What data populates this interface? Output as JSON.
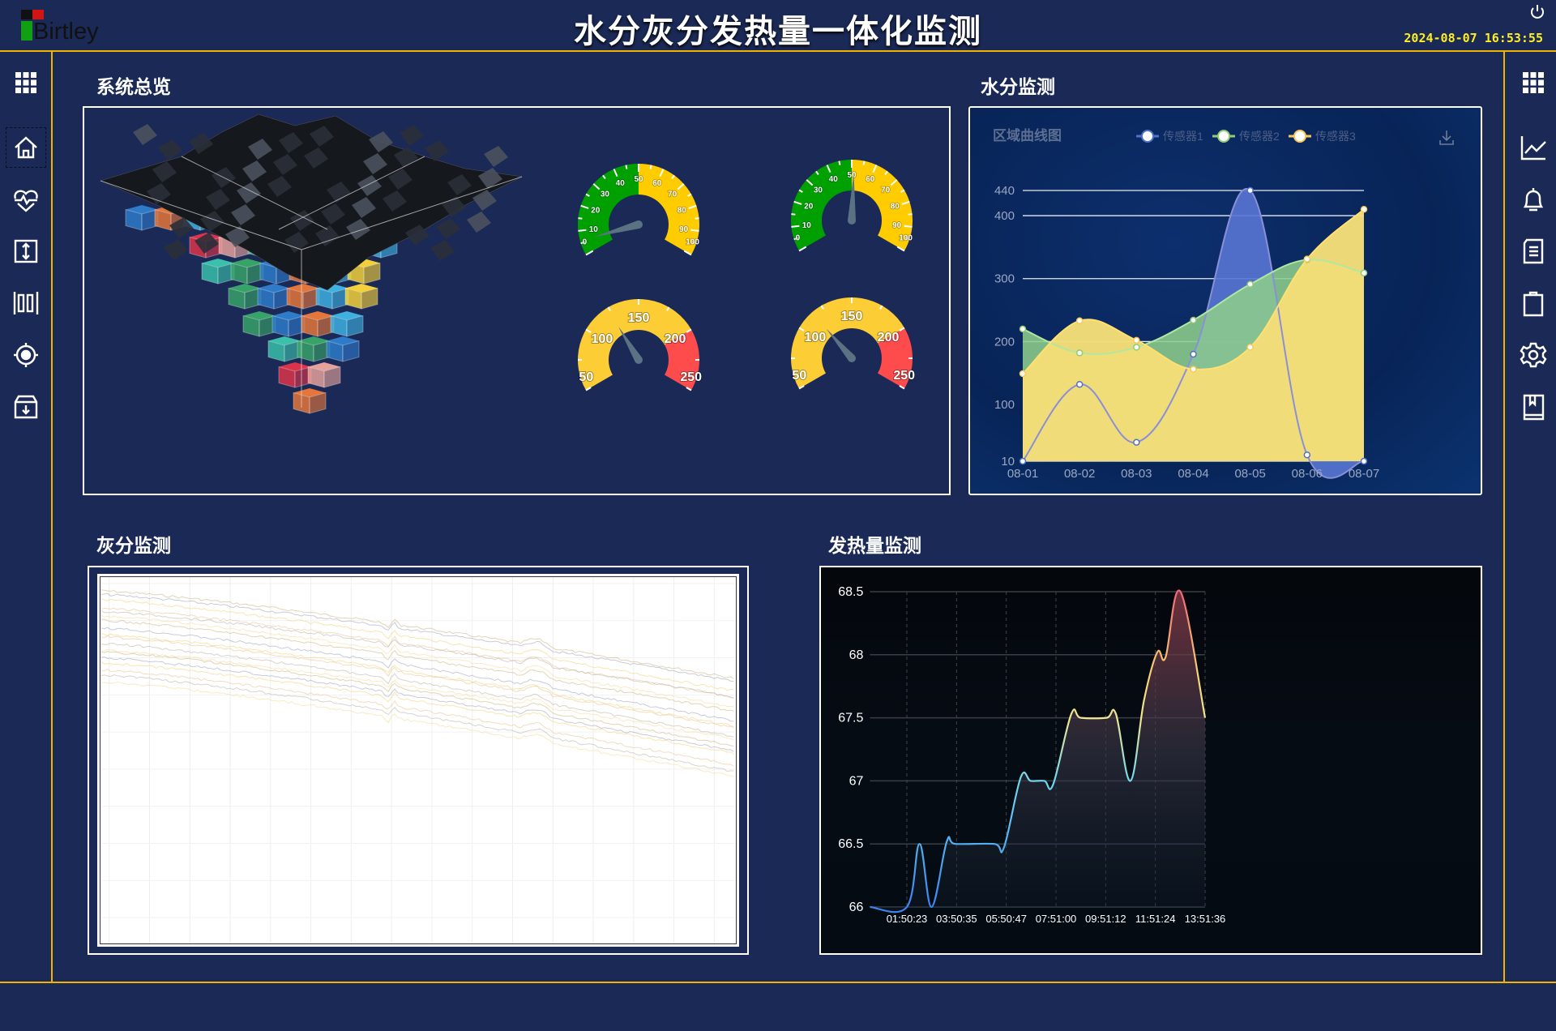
{
  "header": {
    "logo_text": "Birtley",
    "title": "水分灰分发热量一体化监测",
    "datetime": "2024-08-07 16:53:55",
    "power_icon": "power-icon"
  },
  "left_sidebar": {
    "items": [
      {
        "icon": "grid-menu-icon"
      },
      {
        "icon": "home-icon",
        "selected": true
      },
      {
        "icon": "heart-rate-icon"
      },
      {
        "icon": "vertical-expand-icon"
      },
      {
        "icon": "barcode-columns-icon"
      },
      {
        "icon": "target-icon"
      },
      {
        "icon": "archive-download-icon"
      }
    ]
  },
  "right_sidebar": {
    "items": [
      {
        "icon": "grid-menu-icon"
      },
      {
        "icon": "line-chart-icon"
      },
      {
        "icon": "bell-icon"
      },
      {
        "icon": "document-icon"
      },
      {
        "icon": "clipboard-icon"
      },
      {
        "icon": "settings-gear-icon"
      },
      {
        "icon": "book-icon"
      }
    ]
  },
  "overview": {
    "title": "系统总览",
    "gauges": [
      {
        "min": 0,
        "max": 100,
        "value": 6,
        "bands": [
          {
            "to": 50,
            "color": "#00a000"
          },
          {
            "to": 100,
            "color": "#ffcc00"
          }
        ],
        "labels": [
          0,
          10,
          20,
          30,
          40,
          50,
          60,
          70,
          80,
          90,
          100
        ]
      },
      {
        "min": 0,
        "max": 100,
        "value": 51,
        "bands": [
          {
            "to": 50,
            "color": "#00a000"
          },
          {
            "to": 100,
            "color": "#ffcc00"
          }
        ],
        "labels": [
          0,
          10,
          20,
          30,
          40,
          50,
          60,
          70,
          80,
          90,
          100
        ]
      },
      {
        "min": 50,
        "max": 250,
        "value": 124,
        "bands": [
          {
            "to": 200,
            "color": "#fdcd35"
          },
          {
            "to": 250,
            "color": "#fe4c4c"
          }
        ],
        "labels": [
          50,
          100,
          150,
          200,
          250
        ]
      },
      {
        "min": 50,
        "max": 250,
        "value": 116,
        "bands": [
          {
            "to": 200,
            "color": "#fdcd35"
          },
          {
            "to": 250,
            "color": "#fe4c4c"
          }
        ],
        "labels": [
          50,
          100,
          150,
          200,
          250
        ]
      }
    ]
  },
  "water": {
    "title": "水分监测",
    "chart_data": {
      "type": "area",
      "title": "区域曲线图",
      "categories": [
        "08-01",
        "08-02",
        "08-03",
        "08-04",
        "08-05",
        "08-06",
        "08-07"
      ],
      "yticks": [
        10,
        100,
        200,
        300,
        400,
        440
      ],
      "ylim": [
        10,
        440
      ],
      "grid": true,
      "legend": "top-right",
      "series": [
        {
          "name": "传感器1",
          "color": "#5470c6",
          "values": [
            10,
            132,
            40,
            180,
            440,
            20,
            10
          ]
        },
        {
          "name": "传感器2",
          "color": "#91cc75",
          "values": [
            220,
            182,
            191,
            234,
            291,
            330,
            309
          ]
        },
        {
          "name": "传感器3",
          "color": "#fac858",
          "values": [
            149,
            233,
            202,
            156,
            191,
            331,
            410
          ]
        }
      ]
    },
    "download_icon": "download-icon"
  },
  "ash": {
    "title": "灰分监测"
  },
  "heat": {
    "title": "发热量监测",
    "chart_data": {
      "type": "line",
      "xticks": [
        "01:50:23",
        "03:50:35",
        "05:50:47",
        "07:51:00",
        "09:51:12",
        "11:51:24",
        "13:51:36"
      ],
      "yticks": [
        "66",
        "66.5",
        "67",
        "67.5",
        "68",
        "68.5"
      ],
      "ylim": [
        66,
        68.5
      ],
      "grid": true,
      "points": [
        [
          "00:21:00",
          66
        ],
        [
          "01:50:23",
          66
        ],
        [
          "02:21:00",
          66.5
        ],
        [
          "02:50:00",
          66
        ],
        [
          "03:27:00",
          66.52
        ],
        [
          "03:48:00",
          66.5
        ],
        [
          "05:22:00",
          66.5
        ],
        [
          "05:45:00",
          66.47
        ],
        [
          "06:26:00",
          67.03
        ],
        [
          "06:50:00",
          67.0
        ],
        [
          "07:23:00",
          67.0
        ],
        [
          "07:44:00",
          66.97
        ],
        [
          "08:28:00",
          67.53
        ],
        [
          "08:51:00",
          67.5
        ],
        [
          "09:53:00",
          67.5
        ],
        [
          "10:16:00",
          67.53
        ],
        [
          "10:51:00",
          67.0
        ],
        [
          "11:24:00",
          67.64
        ],
        [
          "11:56:00",
          68.02
        ],
        [
          "12:16:00",
          67.98
        ],
        [
          "12:52:00",
          68.5
        ],
        [
          "13:51:36",
          67.5
        ]
      ]
    }
  }
}
